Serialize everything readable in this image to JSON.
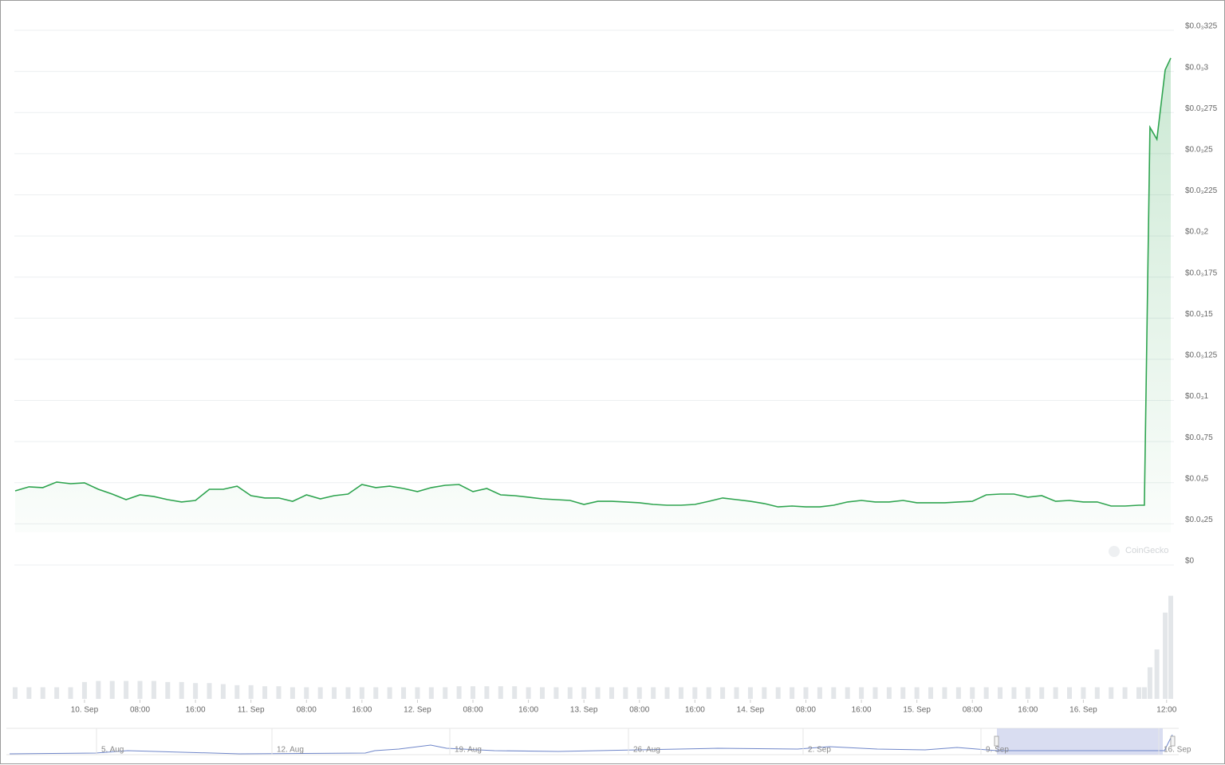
{
  "chart_data": {
    "type": "area",
    "x": [
      -10,
      -8,
      -6,
      -4,
      -2,
      0,
      2,
      4,
      6,
      8,
      10,
      12,
      14,
      16,
      18,
      20,
      22,
      24,
      26,
      28,
      30,
      32,
      34,
      36,
      38,
      40,
      42,
      44,
      46,
      48,
      50,
      52,
      54,
      56,
      58,
      60,
      62,
      64,
      66,
      68,
      70,
      72,
      74,
      76,
      78,
      80,
      82,
      84,
      86,
      88,
      90,
      92,
      94,
      96,
      98,
      100,
      102,
      104,
      106,
      108,
      110,
      112,
      114,
      116,
      118,
      120,
      122,
      124,
      126,
      128,
      130,
      132,
      134,
      136,
      138,
      140,
      142,
      144,
      146,
      148,
      150,
      152,
      152.8,
      153.6,
      154.6,
      155.8,
      156.6
    ],
    "values": [
      4.26e-05,
      4.51e-05,
      4.46e-05,
      4.8e-05,
      4.7e-05,
      4.75e-05,
      4.36e-05,
      4.07e-05,
      3.73e-05,
      4.02e-05,
      3.92e-05,
      3.73e-05,
      3.59e-05,
      3.68e-05,
      4.36e-05,
      4.36e-05,
      4.55e-05,
      3.97e-05,
      3.83e-05,
      3.83e-05,
      3.63e-05,
      4.02e-05,
      3.78e-05,
      3.97e-05,
      4.07e-05,
      4.65e-05,
      4.46e-05,
      4.55e-05,
      4.41e-05,
      4.22e-05,
      4.46e-05,
      4.6e-05,
      4.65e-05,
      4.22e-05,
      4.41e-05,
      4.02e-05,
      3.97e-05,
      3.88e-05,
      3.78e-05,
      3.73e-05,
      3.68e-05,
      3.44e-05,
      3.63e-05,
      3.63e-05,
      3.59e-05,
      3.54e-05,
      3.44e-05,
      3.39e-05,
      3.39e-05,
      3.44e-05,
      3.63e-05,
      3.83e-05,
      3.73e-05,
      3.63e-05,
      3.49e-05,
      3.29e-05,
      3.34e-05,
      3.29e-05,
      3.29e-05,
      3.39e-05,
      3.59e-05,
      3.68e-05,
      3.59e-05,
      3.59e-05,
      3.68e-05,
      3.54e-05,
      3.54e-05,
      3.54e-05,
      3.59e-05,
      3.63e-05,
      4.02e-05,
      4.07e-05,
      4.07e-05,
      3.88e-05,
      3.97e-05,
      3.63e-05,
      3.68e-05,
      3.59e-05,
      3.59e-05,
      3.34e-05,
      3.34e-05,
      3.39e-05,
      3.39e-05,
      0.0002636,
      0.0002563,
      0.0002985,
      0.0003057
    ],
    "volume": [
      11,
      11,
      11,
      11,
      11,
      16,
      17,
      17,
      17,
      17,
      17,
      16,
      16,
      15,
      15,
      14,
      13,
      13,
      12,
      12,
      11,
      11,
      11,
      11,
      11,
      11,
      11,
      11,
      11,
      11,
      11,
      11,
      12,
      12,
      12,
      12,
      12,
      11,
      11,
      11,
      11,
      11,
      11,
      11,
      11,
      11,
      11,
      11,
      11,
      11,
      11,
      11,
      11,
      11,
      11,
      11,
      11,
      11,
      11,
      11,
      11,
      11,
      11,
      11,
      11,
      11,
      11,
      11,
      11,
      11,
      11,
      11,
      11,
      11,
      11,
      11,
      11,
      11,
      11,
      11,
      11,
      11,
      11,
      30,
      47,
      82,
      98
    ],
    "volume_ylim": [
      0,
      100
    ],
    "color": "#2ea44f",
    "volume_color": "#e3e6e9",
    "xlim": [
      -10.8,
      156.6
    ],
    "xticks": [
      {
        "value": 0,
        "label": "10. Sep"
      },
      {
        "value": 8,
        "label": "08:00"
      },
      {
        "value": 16,
        "label": "16:00"
      },
      {
        "value": 24,
        "label": "11. Sep"
      },
      {
        "value": 32,
        "label": "08:00"
      },
      {
        "value": 40,
        "label": "16:00"
      },
      {
        "value": 48,
        "label": "12. Sep"
      },
      {
        "value": 56,
        "label": "08:00"
      },
      {
        "value": 64,
        "label": "16:00"
      },
      {
        "value": 72,
        "label": "13. Sep"
      },
      {
        "value": 80,
        "label": "08:00"
      },
      {
        "value": 88,
        "label": "16:00"
      },
      {
        "value": 96,
        "label": "14. Sep"
      },
      {
        "value": 104,
        "label": "08:00"
      },
      {
        "value": 112,
        "label": "16:00"
      },
      {
        "value": 120,
        "label": "15. Sep"
      },
      {
        "value": 128,
        "label": "08:00"
      },
      {
        "value": 136,
        "label": "16:00"
      },
      {
        "value": 144,
        "label": "16. Sep"
      },
      {
        "value": 156,
        "label": "12:00"
      }
    ],
    "ylim": [
      0,
      0.000325
    ],
    "yticks": [
      {
        "value": 0,
        "label": "$0"
      },
      {
        "value": 2.5e-05,
        "label": "$0.0₄25"
      },
      {
        "value": 5e-05,
        "label": "$0.0₄5"
      },
      {
        "value": 7.5e-05,
        "label": "$0.0₄75"
      },
      {
        "value": 0.0001,
        "label": "$0.0₃1"
      },
      {
        "value": 0.000125,
        "label": "$0.0₃125"
      },
      {
        "value": 0.00015,
        "label": "$0.0₃15"
      },
      {
        "value": 0.000175,
        "label": "$0.0₃175"
      },
      {
        "value": 0.0002,
        "label": "$0.0₃2"
      },
      {
        "value": 0.000225,
        "label": "$0.0₃225"
      },
      {
        "value": 0.00025,
        "label": "$0.0₃25"
      },
      {
        "value": 0.000275,
        "label": "$0.0₃275"
      },
      {
        "value": 0.0003,
        "label": "$0.0₃3"
      },
      {
        "value": 0.000325,
        "label": "$0.0₃325"
      }
    ],
    "grid": true,
    "watermark": "CoinGecko",
    "navigator_labels": [
      "5. Aug",
      "12. Aug",
      "19. Aug",
      "26. Aug",
      "2. Sep",
      "9. Sep",
      "16. Sep"
    ]
  }
}
